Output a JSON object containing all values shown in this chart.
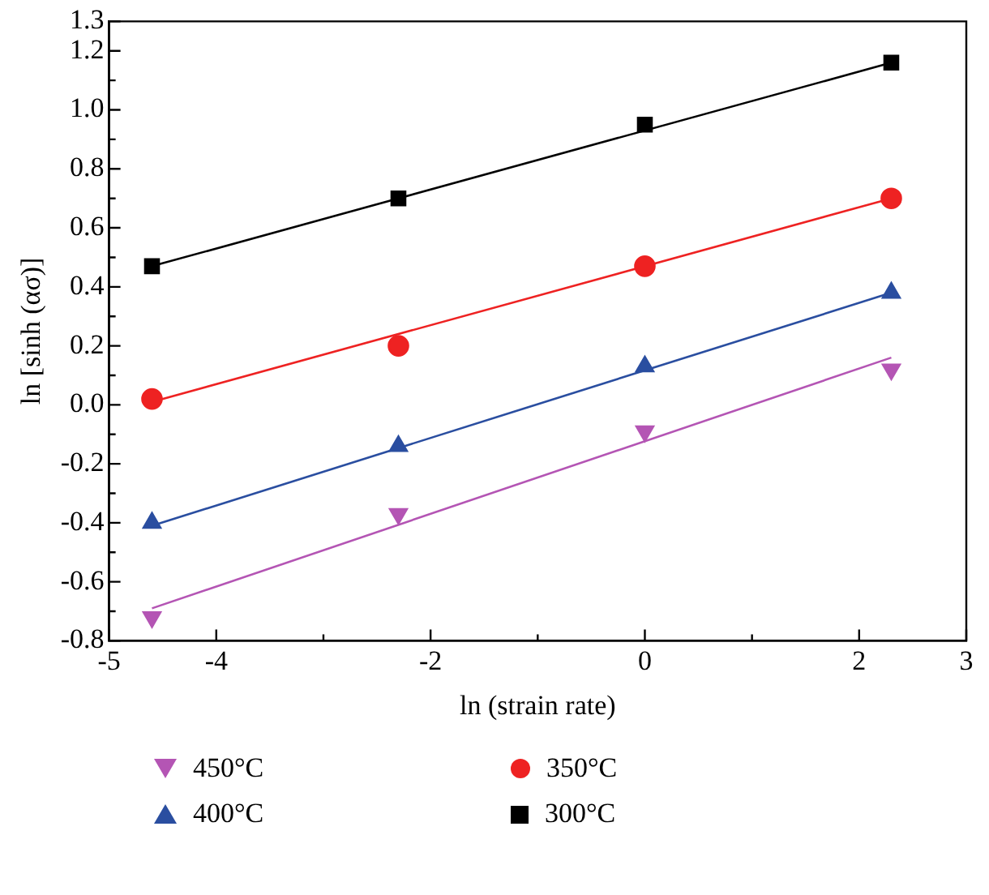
{
  "chart_data": {
    "type": "scatter",
    "xlabel": "ln (strain rate)",
    "ylabel": "ln [sinh (ασ)]",
    "xlim": [
      -5,
      3
    ],
    "xticks": [
      -5,
      -4,
      {
        "value": -3,
        "label": null
      },
      -2,
      {
        "value": -1,
        "label": null
      },
      0,
      {
        "value": 1,
        "label": null
      },
      2,
      3
    ],
    "ylim": [
      -0.8,
      1.3
    ],
    "yticks": [
      -0.8,
      {
        "value": -0.7,
        "label": null
      },
      -0.6,
      {
        "value": -0.5,
        "label": null
      },
      -0.4,
      {
        "value": -0.3,
        "label": null
      },
      -0.2,
      {
        "value": -0.1,
        "label": null
      },
      {
        "value": 0,
        "label": "0.0"
      },
      {
        "value": 0.1,
        "label": null
      },
      0.2,
      {
        "value": 0.3,
        "label": null
      },
      0.4,
      {
        "value": 0.5,
        "label": null
      },
      0.6,
      {
        "value": 0.7,
        "label": null
      },
      0.8,
      {
        "value": 0.9,
        "label": null
      },
      {
        "value": 1,
        "label": "1.0"
      },
      {
        "value": 1.1,
        "label": null
      },
      1.2,
      1.3
    ],
    "grid": false,
    "legend": "bottom",
    "series": [
      {
        "name": "450°C",
        "color": "#b455b4",
        "marker": "triangle_down",
        "x": [
          -4.6,
          -2.3,
          0,
          2.3
        ],
        "values": [
          -0.72,
          -0.37,
          -0.09,
          0.12
        ]
      },
      {
        "name": "350°C",
        "color": "#ee2222",
        "marker": "circle",
        "x": [
          -4.6,
          -2.3,
          0,
          2.3
        ],
        "values": [
          0.02,
          0.2,
          0.47,
          0.7
        ]
      },
      {
        "name": "400°C",
        "color": "#2a4ea0",
        "marker": "triangle",
        "x": [
          -4.6,
          -2.3,
          0,
          2.3
        ],
        "values": [
          -0.4,
          -0.14,
          0.13,
          0.38
        ]
      },
      {
        "name": "300°C",
        "color": "#000000",
        "marker": "square",
        "x": [
          -4.6,
          -2.3,
          0,
          2.3
        ],
        "values": [
          0.47,
          0.7,
          0.95,
          1.16
        ]
      },
      {
        "type": "line",
        "color": "#b455b4",
        "marker": "none",
        "x": [
          -4.6,
          2.3
        ],
        "values": [
          -0.69,
          0.16
        ]
      },
      {
        "type": "line",
        "color": "#ee2222",
        "marker": "none",
        "x": [
          -4.6,
          2.3
        ],
        "values": [
          0.01,
          0.7
        ]
      },
      {
        "type": "line",
        "color": "#2a4ea0",
        "marker": "none",
        "x": [
          -4.6,
          2.3
        ],
        "values": [
          -0.41,
          0.38
        ]
      },
      {
        "type": "line",
        "color": "#000000",
        "marker": "none",
        "x": [
          -4.6,
          2.3
        ],
        "values": [
          0.47,
          1.16
        ]
      }
    ]
  }
}
